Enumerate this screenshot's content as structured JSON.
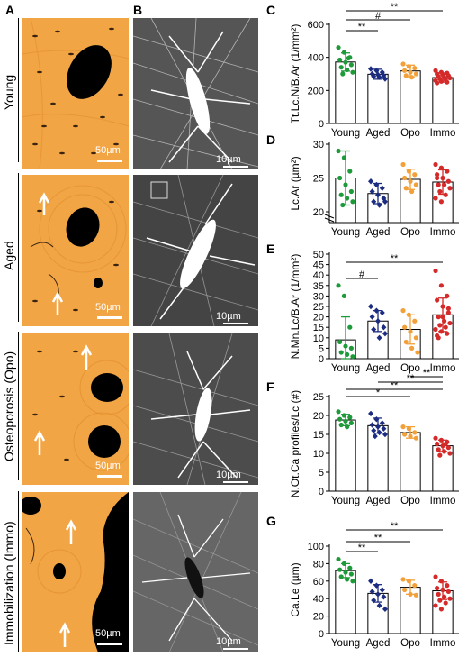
{
  "panel_labels": {
    "a": "A",
    "b": "B",
    "c": "C",
    "d": "D",
    "e": "E",
    "f": "F",
    "g": "G"
  },
  "rows": [
    {
      "label": "Young",
      "scale_a": "50µm",
      "scale_b": "10µm"
    },
    {
      "label": "Aged",
      "scale_a": "50µm",
      "scale_b": "10µm"
    },
    {
      "label": "Osteoporosis (Opo)",
      "scale_a": "50µm",
      "scale_b": "10µm"
    },
    {
      "label": "Immobilization (Immo)",
      "scale_a": "50µm",
      "scale_b": "10µm"
    }
  ],
  "colors": {
    "young": "#1e9a3a",
    "aged": "#1c2c80",
    "opo": "#f2a03a",
    "immo": "#d52a2a",
    "bone": "#f1a545",
    "cell": "#ffffff"
  },
  "chart_data": [
    {
      "id": "c",
      "type": "bar",
      "categories": [
        "Young",
        "Aged",
        "Opo",
        "Immo"
      ],
      "values": [
        372,
        298,
        318,
        278
      ],
      "errors": [
        55,
        30,
        35,
        28
      ],
      "points": [
        [
          460,
          430,
          400,
          385,
          370,
          355,
          340,
          325,
          310,
          300,
          395
        ],
        [
          330,
          320,
          310,
          300,
          295,
          290,
          285,
          280,
          270
        ],
        [
          360,
          345,
          335,
          320,
          310,
          300,
          290,
          280
        ],
        [
          320,
          310,
          305,
          300,
          295,
          290,
          285,
          280,
          275,
          270,
          265,
          260,
          255,
          250,
          245
        ]
      ],
      "ylabel": "Tt.Lc.N/B.Ar (1/mm²)",
      "yticks": [
        0,
        200,
        400,
        600
      ],
      "ylim": [
        0,
        600
      ],
      "sig": [
        {
          "from": 0,
          "to": 1,
          "label": "**"
        },
        {
          "from": 0,
          "to": 2,
          "label": "#"
        },
        {
          "from": 0,
          "to": 3,
          "label": "**"
        }
      ]
    },
    {
      "id": "d",
      "type": "bar",
      "categories": [
        "Young",
        "Aged",
        "Opo",
        "Immo"
      ],
      "values": [
        25,
        22.7,
        24.8,
        24.4
      ],
      "errors": [
        4,
        1.5,
        1.5,
        1.8
      ],
      "points": [
        [
          29,
          28,
          26,
          25,
          24,
          23,
          22.5,
          22,
          21.5,
          21
        ],
        [
          24.5,
          24,
          23.5,
          23,
          22.5,
          22,
          21.5,
          21,
          21.5
        ],
        [
          27,
          26,
          25.5,
          25,
          24.5,
          24,
          23.5,
          23
        ],
        [
          27,
          26.5,
          26,
          25.5,
          25,
          24.5,
          24,
          24,
          23.5,
          23,
          22.5,
          22,
          21.5,
          26,
          25
        ]
      ],
      "ylabel": "Lc.Ar (µm²)",
      "yticks": [
        0,
        20,
        25,
        30
      ],
      "ylim": [
        0,
        30
      ],
      "sig": []
    },
    {
      "id": "e",
      "type": "bar",
      "categories": [
        "Young",
        "Aged",
        "Opo",
        "Immo"
      ],
      "values": [
        9,
        18,
        14,
        21
      ],
      "errors": [
        11,
        5,
        7,
        8
      ],
      "points": [
        [
          35,
          30,
          15,
          8,
          6,
          5,
          3,
          2,
          1
        ],
        [
          25,
          23,
          22,
          20,
          18,
          15,
          14,
          10,
          12
        ],
        [
          23,
          21,
          18,
          15,
          13,
          10,
          8,
          5,
          3
        ],
        [
          42,
          35,
          30,
          28,
          25,
          22,
          20,
          18,
          17,
          16,
          15,
          14,
          13,
          12,
          11,
          20,
          24,
          10
        ]
      ],
      "ylabel": "N.Mn.Lc/B.Ar (1/mm²)",
      "yticks": [
        0,
        5,
        10,
        15,
        20,
        25,
        30,
        35,
        40,
        45,
        50
      ],
      "ylim": [
        0,
        50
      ],
      "sig": [
        {
          "from": 0,
          "to": 1,
          "label": "#"
        },
        {
          "from": 0,
          "to": 3,
          "label": "**"
        }
      ]
    },
    {
      "id": "f",
      "type": "bar",
      "categories": [
        "Young",
        "Aged",
        "Opo",
        "Immo"
      ],
      "values": [
        18.8,
        17.3,
        15.5,
        12
      ],
      "errors": [
        1.5,
        2,
        1.5,
        1.5
      ],
      "points": [
        [
          21,
          20,
          19.5,
          19,
          18.5,
          18,
          17.5,
          17
        ],
        [
          20.5,
          19,
          18,
          17.5,
          17,
          16.5,
          16,
          15.5,
          15,
          14.5
        ],
        [
          17,
          16.5,
          15.5,
          15,
          14.5,
          14
        ],
        [
          14,
          13.5,
          13,
          12.5,
          12,
          11.5,
          11,
          10.5,
          10,
          9.5,
          12.5
        ]
      ],
      "ylabel": "N.Ot.Ca profiles/Lc (#)",
      "yticks": [
        0,
        5,
        10,
        15,
        20,
        25
      ],
      "ylim": [
        0,
        25
      ],
      "sig": [
        {
          "from": 0,
          "to": 2,
          "label": "*"
        },
        {
          "from": 0,
          "to": 3,
          "label": "**"
        },
        {
          "from": 1,
          "to": 3,
          "label": "**"
        },
        {
          "from": 2,
          "to": 3,
          "label": "**"
        }
      ]
    },
    {
      "id": "g",
      "type": "bar",
      "categories": [
        "Young",
        "Aged",
        "Opo",
        "Immo"
      ],
      "values": [
        72,
        46,
        53,
        49
      ],
      "errors": [
        8,
        10,
        8,
        10
      ],
      "points": [
        [
          85,
          80,
          75,
          73,
          70,
          68,
          65,
          62,
          60
        ],
        [
          60,
          55,
          50,
          48,
          45,
          42,
          38,
          32,
          28
        ],
        [
          62,
          60,
          55,
          50,
          45,
          44
        ],
        [
          65,
          60,
          55,
          52,
          50,
          48,
          45,
          42,
          40,
          38,
          35,
          32,
          28
        ]
      ],
      "ylabel": "Ca.Le (µm)",
      "yticks": [
        0,
        20,
        40,
        60,
        80,
        100
      ],
      "ylim": [
        0,
        100
      ],
      "sig": [
        {
          "from": 0,
          "to": 1,
          "label": "**"
        },
        {
          "from": 0,
          "to": 2,
          "label": "**"
        },
        {
          "from": 0,
          "to": 3,
          "label": "**"
        }
      ]
    }
  ]
}
